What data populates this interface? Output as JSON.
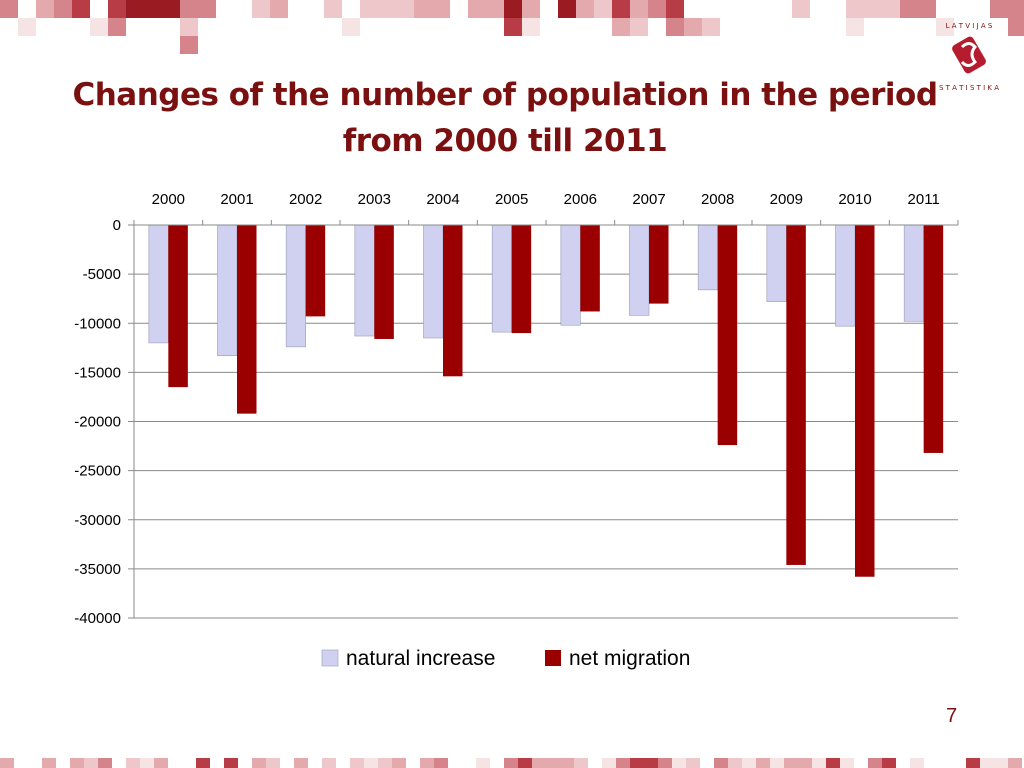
{
  "slide": {
    "title_line1": "Changes of the number of population in the period",
    "title_line2": "from 2000 till 2011",
    "page_number": "7",
    "logo_text": "LATVIJAS STATISTIKA",
    "accent_color": "#7b1010"
  },
  "chart_data": {
    "type": "bar",
    "categories": [
      "2000",
      "2001",
      "2002",
      "2003",
      "2004",
      "2005",
      "2006",
      "2007",
      "2008",
      "2009",
      "2010",
      "2011"
    ],
    "series": [
      {
        "name": "natural increase",
        "color": "#d0d0f0",
        "values": [
          -12000,
          -13300,
          -12400,
          -11300,
          -11500,
          -10900,
          -10200,
          -9200,
          -6600,
          -7800,
          -10300,
          -9800
        ]
      },
      {
        "name": "net migration",
        "color": "#9b0000",
        "values": [
          -16500,
          -19200,
          -9300,
          -11600,
          -15400,
          -11000,
          -8800,
          -8000,
          -22400,
          -34600,
          -35800,
          -23200
        ]
      }
    ],
    "title": "",
    "xlabel": "",
    "ylabel": "",
    "ylim": [
      -40000,
      0
    ],
    "yticks": [
      0,
      -5000,
      -10000,
      -15000,
      -20000,
      -25000,
      -30000,
      -35000,
      -40000
    ],
    "x_axis_position": "top",
    "grid": true,
    "legend_position": "bottom"
  }
}
